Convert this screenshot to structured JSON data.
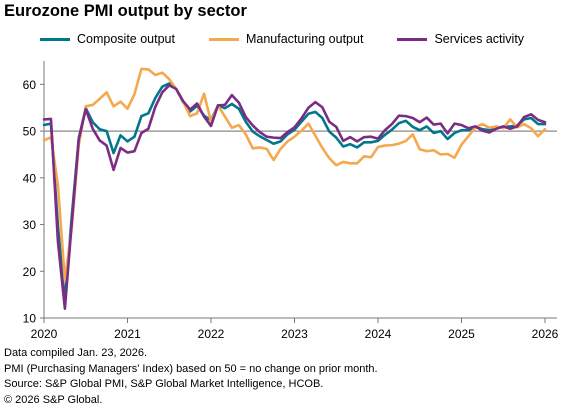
{
  "title": "Eurozone PMI output by sector",
  "footnotes": [
    "Data compiled Jan. 23, 2026.",
    "PMI (Purchasing Managers' Index) based on 50 = no change on prior month.",
    "Source: S&P Global PMI, S&P Global Market Intelligence, HCOB.",
    "© 2026 S&P Global."
  ],
  "chart_data": {
    "type": "line",
    "title": "Eurozone PMI output by sector",
    "xlabel": "",
    "ylabel": "",
    "x_start": "2020-01",
    "x_step": "month",
    "x_ticks": [
      "2020",
      "2021",
      "2022",
      "2023",
      "2024",
      "2025",
      "2026"
    ],
    "y_ticks": [
      10,
      20,
      30,
      40,
      50,
      60
    ],
    "ylim": [
      10,
      65
    ],
    "reference_line": 50,
    "grid": false,
    "legend_position": "top",
    "series": [
      {
        "name": "Composite output",
        "color": "#00778B",
        "values": [
          51.3,
          51.6,
          29.7,
          13.6,
          31.9,
          48.5,
          54.9,
          51.9,
          50.4,
          50.0,
          45.3,
          49.1,
          47.8,
          48.8,
          53.2,
          53.8,
          57.1,
          59.5,
          60.2,
          59.0,
          56.2,
          54.2,
          55.4,
          53.3,
          52.3,
          55.5,
          54.9,
          55.8,
          54.8,
          52.0,
          49.9,
          48.9,
          48.1,
          47.3,
          47.8,
          49.3,
          50.3,
          52.0,
          53.7,
          54.1,
          52.8,
          49.9,
          48.6,
          46.7,
          47.2,
          46.5,
          47.6,
          47.6,
          47.9,
          49.2,
          50.3,
          51.7,
          52.2,
          50.9,
          50.2,
          51.0,
          49.6,
          50.0,
          48.3,
          49.6,
          50.2,
          50.2,
          50.9,
          50.4,
          50.2,
          50.6,
          50.9,
          51.0,
          51.2,
          52.5,
          52.8,
          51.5,
          51.5
        ]
      },
      {
        "name": "Manufacturing output",
        "color": "#F5A84E",
        "values": [
          48.0,
          48.7,
          38.5,
          18.1,
          29.5,
          47.0,
          55.3,
          55.6,
          56.9,
          58.3,
          55.3,
          56.3,
          54.8,
          57.9,
          63.3,
          63.2,
          62.0,
          62.5,
          61.1,
          59.0,
          56.3,
          53.2,
          53.8,
          58.0,
          52.0,
          55.5,
          53.1,
          50.7,
          51.3,
          49.3,
          46.3,
          46.5,
          46.2,
          43.8,
          46.2,
          47.8,
          48.8,
          50.1,
          51.6,
          49.0,
          46.4,
          44.2,
          42.7,
          43.4,
          43.1,
          43.1,
          44.6,
          44.4,
          46.6,
          46.9,
          47.0,
          47.3,
          47.9,
          49.3,
          46.1,
          45.7,
          45.9,
          45.0,
          45.1,
          44.3,
          47.1,
          48.9,
          50.8,
          51.5,
          50.7,
          51.0,
          50.6,
          52.5,
          50.8,
          51.5,
          50.6,
          48.9,
          50.4
        ]
      },
      {
        "name": "Services activity",
        "color": "#7B2C84",
        "values": [
          52.5,
          52.6,
          26.4,
          12.0,
          30.5,
          48.3,
          54.7,
          50.5,
          48.0,
          46.9,
          41.7,
          46.4,
          45.4,
          45.7,
          49.6,
          50.5,
          55.2,
          58.3,
          59.8,
          59.0,
          56.4,
          54.6,
          55.9,
          53.1,
          51.1,
          55.5,
          55.6,
          57.7,
          56.1,
          53.0,
          51.2,
          49.8,
          48.8,
          48.6,
          48.5,
          49.8,
          50.8,
          52.7,
          55.0,
          56.2,
          55.1,
          52.0,
          50.9,
          47.9,
          48.7,
          47.8,
          48.7,
          48.8,
          48.4,
          50.2,
          51.5,
          53.3,
          53.2,
          52.8,
          51.9,
          52.9,
          51.4,
          51.6,
          49.5,
          51.6,
          51.3,
          50.6,
          51.0,
          50.1,
          49.7,
          50.5,
          51.0,
          50.5,
          51.0,
          53.0,
          53.6,
          52.4,
          51.9
        ]
      }
    ]
  }
}
